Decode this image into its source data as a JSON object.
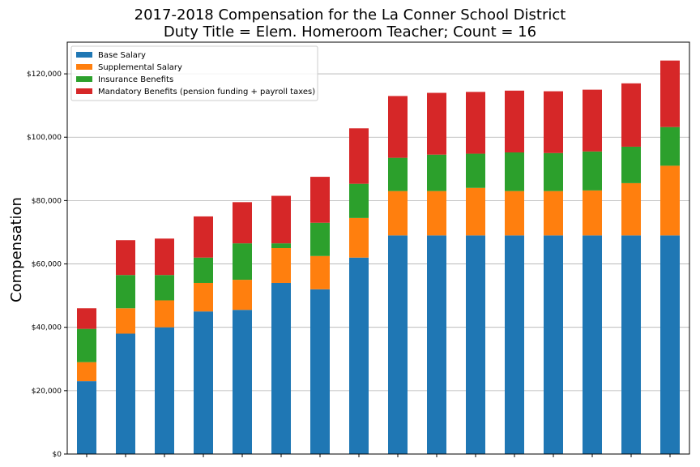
{
  "chart_data": {
    "type": "bar",
    "stacked": true,
    "title": "2017-2018 Compensation for the La Conner School District",
    "subtitle": "Duty Title = Elem. Homeroom Teacher; Count = 16",
    "xlabel": "",
    "ylabel": "Compensation",
    "ylim": [
      0,
      130000
    ],
    "yticks": [
      0,
      20000,
      40000,
      60000,
      80000,
      100000,
      120000
    ],
    "ytick_labels": [
      "$0",
      "$20,000",
      "$40,000",
      "$60,000",
      "$80,000",
      "$100,000",
      "$120,000"
    ],
    "grid": "horizontal",
    "legend_position": "top-left",
    "categories": [
      "",
      "",
      "",
      "",
      "",
      "",
      "",
      "",
      "",
      "",
      "",
      "",
      "",
      "",
      "",
      ""
    ],
    "series": [
      {
        "name": "Base Salary",
        "color": "#1f77b4",
        "values": [
          23000,
          38000,
          40000,
          45000,
          45500,
          54000,
          52000,
          62000,
          69000,
          69000,
          69000,
          69000,
          69000,
          69000,
          69000,
          69000
        ]
      },
      {
        "name": "Supplemental Salary",
        "color": "#ff7f0e",
        "values": [
          6000,
          8000,
          8500,
          9000,
          9500,
          11000,
          10500,
          12500,
          14000,
          14000,
          15000,
          14000,
          14000,
          14200,
          16500,
          22000
        ]
      },
      {
        "name": "Insurance Benefits",
        "color": "#2ca02c",
        "values": [
          10500,
          10500,
          8000,
          8000,
          11500,
          1500,
          10500,
          10800,
          10500,
          11500,
          10800,
          12200,
          12000,
          12300,
          11500,
          12200
        ]
      },
      {
        "name": "Mandatory Benefits (pension funding + payroll taxes)",
        "color": "#d62728",
        "values": [
          6500,
          11000,
          11500,
          13000,
          13000,
          15000,
          14500,
          17500,
          19500,
          19500,
          19500,
          19500,
          19500,
          19500,
          20000,
          21000
        ]
      }
    ]
  }
}
